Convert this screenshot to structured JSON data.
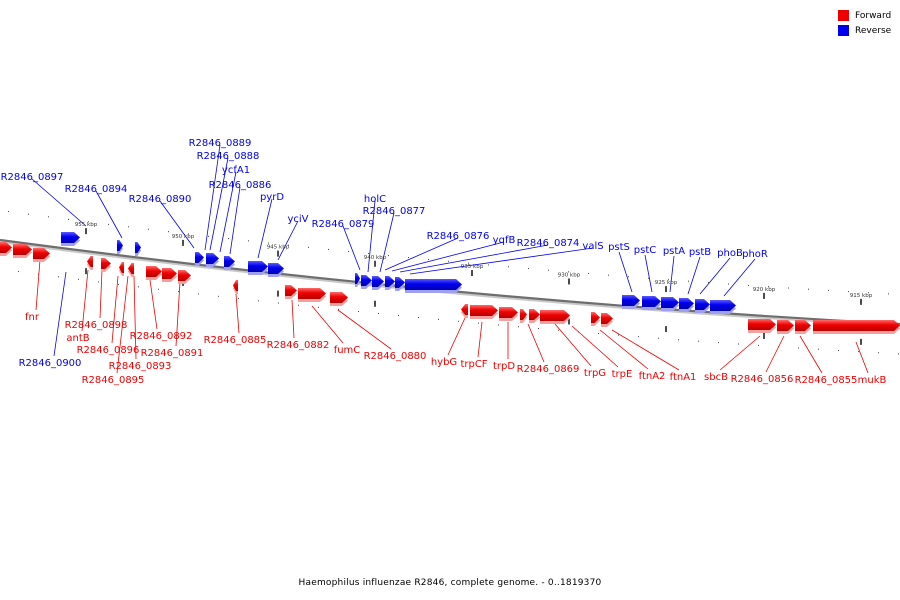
{
  "legend": {
    "forward_label": "Forward",
    "reverse_label": "Reverse",
    "forward_color": "#ee0000",
    "reverse_color": "#0000ee"
  },
  "caption": "Haemophilus influenzae R2846, complete genome. - 0..1819370",
  "ticks": [
    "955 kbp",
    "950 kbp",
    "945 kbp",
    "940 kbp",
    "935 kbp",
    "930 kbp",
    "925 kbp",
    "920 kbp",
    "915 kbp"
  ],
  "genes_above": [
    "R2846_0897",
    "R2846_0894",
    "R2846_0890",
    "R2846_0889",
    "R2846_0888",
    "ycfA1",
    "R2846_0886",
    "pyrD",
    "yciV",
    "R2846_0879",
    "holC",
    "R2846_0877",
    "R2846_0876",
    "yqfB",
    "R2846_0874",
    "valS",
    "pstS",
    "pstC",
    "pstA",
    "pstB",
    "phoB",
    "phoR"
  ],
  "genes_below": [
    "fnr",
    "R2846_0900",
    "antB",
    "R2846_0898",
    "R2846_0896",
    "R2846_0895",
    "R2846_0893",
    "R2846_0892",
    "R2846_0891",
    "R2846_0885",
    "R2846_0882",
    "fumC",
    "R2846_0880",
    "hybG",
    "trpCF",
    "trpD",
    "R2846_0869",
    "trpG",
    "trpE",
    "ftnA2",
    "ftnA1",
    "sbcB",
    "R2846_0856",
    "R2846_0855",
    "mukB"
  ]
}
